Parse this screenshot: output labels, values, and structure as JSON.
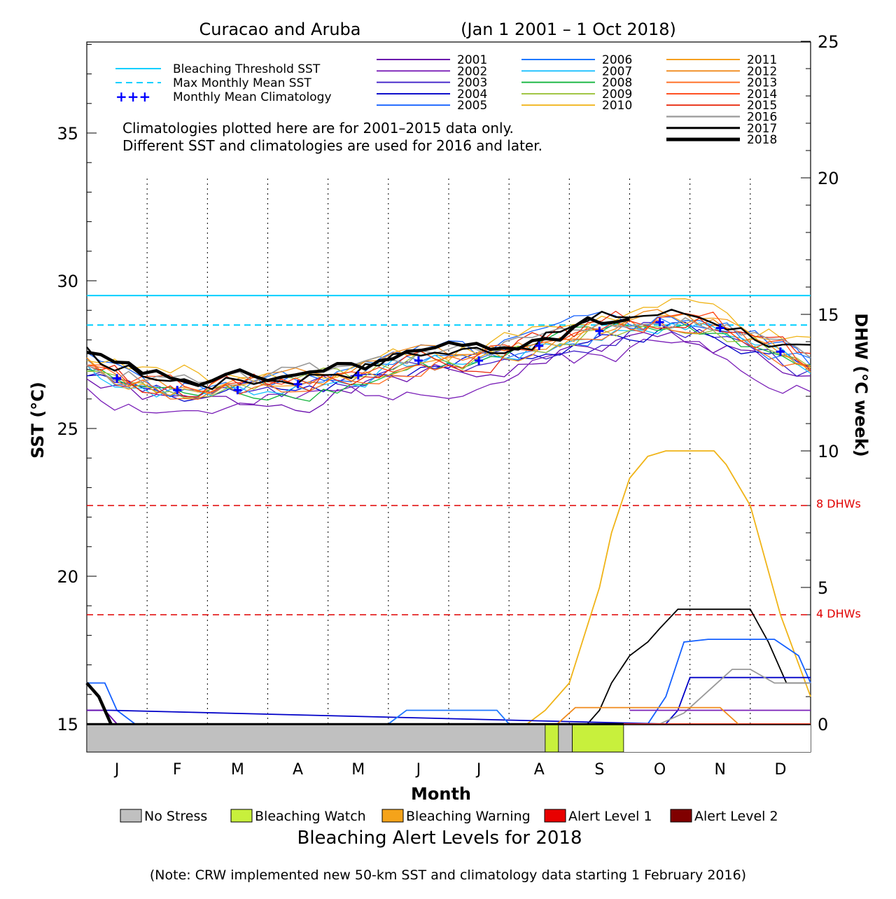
{
  "chart_data": {
    "type": "line",
    "title": "Curacao and Aruba",
    "date_range": "(Jan 1 2001 – 1 Oct 2018)",
    "xlabel": "Month",
    "ylabel_left": "SST (°C)",
    "ylabel_right": "DHW (°C week)",
    "months": [
      "J",
      "F",
      "M",
      "A",
      "M",
      "J",
      "J",
      "A",
      "S",
      "O",
      "N",
      "D"
    ],
    "x_range": [
      0,
      12
    ],
    "sst_range": [
      14,
      38.5
    ],
    "sst_ticks": [
      15,
      20,
      25,
      30,
      35
    ],
    "dhw_ticks": [
      0,
      5,
      10,
      15,
      20,
      25
    ],
    "dhw_scale_note": "right axis 0 at SST 15, 25 at SST 38.88",
    "note": "Climatologies plotted here are for 2001–2015 data only.",
    "note2": "Different SST and climatologies are used for 2016 and later.",
    "thresholds": {
      "bleaching_threshold_sst": 29.5,
      "max_monthly_mean_sst": 28.5,
      "dhw_8_label": "8 DHWs",
      "dhw_4_label": "4 DHWs",
      "dhw_8": 8,
      "dhw_4": 4
    },
    "legend_lines": [
      {
        "label": "Bleaching Threshold SST",
        "color": "#00cfff",
        "style": "solid"
      },
      {
        "label": "Max Monthly Mean SST",
        "color": "#00cfff",
        "style": "dashed"
      },
      {
        "label": "Monthly Mean Climatology",
        "color": "#0000ff",
        "style": "plus"
      }
    ],
    "climatology": {
      "x": [
        0.5,
        1.5,
        2.5,
        3.5,
        4.5,
        5.5,
        6.5,
        7.5,
        8.5,
        9.5,
        10.5,
        11.5
      ],
      "y": [
        26.7,
        26.3,
        26.3,
        26.5,
        26.8,
        27.3,
        27.3,
        27.8,
        28.3,
        28.6,
        28.4,
        27.6
      ]
    },
    "series": [
      {
        "name": "2001",
        "color": "#6a0dad",
        "base": -0.5,
        "amp": 0.3,
        "seed": 1,
        "wid": 1.3
      },
      {
        "name": "2002",
        "color": "#7a1fb8",
        "base": -0.7,
        "amp": 0.35,
        "seed": 2,
        "wid": 1.3
      },
      {
        "name": "2003",
        "color": "#3f1fc8",
        "base": -0.2,
        "amp": 0.3,
        "seed": 3,
        "wid": 1.3
      },
      {
        "name": "2004",
        "color": "#0000c8",
        "base": -0.1,
        "amp": 0.3,
        "seed": 4,
        "wid": 1.3
      },
      {
        "name": "2005",
        "color": "#1460ff",
        "base": 0.15,
        "amp": 0.35,
        "seed": 5,
        "wid": 1.3
      },
      {
        "name": "2006",
        "color": "#1e78ff",
        "base": 0.05,
        "amp": 0.3,
        "seed": 6,
        "wid": 1.3
      },
      {
        "name": "2007",
        "color": "#19c0ff",
        "base": -0.05,
        "amp": 0.3,
        "seed": 7,
        "wid": 1.3
      },
      {
        "name": "2008",
        "color": "#12b43c",
        "base": -0.15,
        "amp": 0.3,
        "seed": 8,
        "wid": 1.3
      },
      {
        "name": "2009",
        "color": "#9bc23a",
        "base": -0.05,
        "amp": 0.3,
        "seed": 9,
        "wid": 1.3
      },
      {
        "name": "2010",
        "color": "#f0b418",
        "base": 0.45,
        "amp": 0.35,
        "seed": 10,
        "wid": 1.3
      },
      {
        "name": "2011",
        "color": "#f5a020",
        "base": 0.0,
        "amp": 0.3,
        "seed": 11,
        "wid": 1.3
      },
      {
        "name": "2012",
        "color": "#f08a1c",
        "base": 0.1,
        "amp": 0.3,
        "seed": 12,
        "wid": 1.3
      },
      {
        "name": "2013",
        "color": "#ff6a1c",
        "base": -0.05,
        "amp": 0.3,
        "seed": 13,
        "wid": 1.3
      },
      {
        "name": "2014",
        "color": "#ff4614",
        "base": 0.05,
        "amp": 0.3,
        "seed": 14,
        "wid": 1.3
      },
      {
        "name": "2015",
        "color": "#e8280c",
        "base": 0.15,
        "amp": 0.35,
        "seed": 15,
        "wid": 1.3
      },
      {
        "name": "2016",
        "color": "#999999",
        "base": 0.25,
        "amp": 0.3,
        "seed": 16,
        "wid": 1.6
      },
      {
        "name": "2017",
        "color": "#000000",
        "base": 0.35,
        "amp": 0.3,
        "seed": 17,
        "wid": 2.4
      },
      {
        "name": "2018",
        "color": "#000000",
        "base": 0.3,
        "amp": 0.25,
        "seed": 18,
        "wid": 4.5,
        "end_x": 9.0
      }
    ],
    "dhw_series": [
      {
        "name": "2010",
        "color": "#f0b418",
        "x": [
          7.3,
          7.6,
          8.0,
          8.5,
          8.7,
          9.0,
          9.3,
          9.6,
          10.0,
          10.4,
          10.6,
          11.0,
          11.5,
          12.0
        ],
        "y": [
          0,
          0.5,
          1.5,
          5,
          7,
          9,
          9.8,
          10,
          10,
          10,
          9.5,
          8,
          4,
          1
        ]
      },
      {
        "name": "2017",
        "color": "#000000",
        "x": [
          8.0,
          8.3,
          8.5,
          8.7,
          9.0,
          9.3,
          9.5,
          9.8,
          10.2,
          10.6,
          11.0,
          11.3,
          11.6,
          12.0
        ],
        "y": [
          0,
          0,
          0.5,
          1.5,
          2.5,
          3,
          3.5,
          4.2,
          4.2,
          4.2,
          4.2,
          3,
          1.5,
          1.5
        ]
      },
      {
        "name": "2005",
        "color": "#1460ff",
        "x": [
          0,
          0.3,
          0.5,
          0.8,
          9.3,
          9.6,
          9.9,
          10.3,
          10.7,
          11.0,
          11.4,
          11.8,
          12.0
        ],
        "y": [
          1.5,
          1.5,
          0.5,
          0,
          0,
          1,
          3,
          3.1,
          3.1,
          3.1,
          3.1,
          2.5,
          1.5
        ]
      },
      {
        "name": "2004",
        "color": "#0000c8",
        "x": [
          0,
          0.4,
          9.6,
          9.8,
          10.0,
          10.4,
          10.8,
          11.2,
          11.6,
          12.0
        ],
        "y": [
          0.5,
          0.5,
          0,
          0.5,
          1.7,
          1.7,
          1.7,
          1.7,
          1.7,
          1.7
        ]
      },
      {
        "name": "2016",
        "color": "#999999",
        "x": [
          0,
          9.5,
          9.9,
          10.3,
          10.7,
          11.0,
          11.4,
          11.8,
          12.0
        ],
        "y": [
          0,
          0,
          0.4,
          1.2,
          2.0,
          2.0,
          1.5,
          1.5,
          1.5
        ]
      },
      {
        "name": "2002",
        "color": "#7a1fb8",
        "x": [
          9.0,
          12.0
        ],
        "y": [
          0.5,
          0.5
        ]
      },
      {
        "name": "2015",
        "color": "#e8280c",
        "x": [
          7.5,
          12.0
        ],
        "y": [
          0,
          0
        ]
      },
      {
        "name": "2001",
        "color": "#6a0dad",
        "x": [
          0,
          0.3,
          0.5
        ],
        "y": [
          0.5,
          0.5,
          0
        ]
      },
      {
        "name": "2013",
        "color": "#f08a1c",
        "x": [
          7.8,
          8.1,
          10.5,
          10.8
        ],
        "y": [
          0,
          0.6,
          0.6,
          0
        ]
      },
      {
        "name": "2007",
        "color": "#1e78ff",
        "x": [
          5.0,
          5.3,
          6.8,
          7.0
        ],
        "y": [
          0,
          0.5,
          0.5,
          0
        ]
      },
      {
        "name": "2018",
        "color": "#000000",
        "x": [
          0,
          0.2,
          0.4
        ],
        "y": [
          1.5,
          1,
          0
        ],
        "wid": 4.5
      }
    ],
    "alert_bar": {
      "title": "Bleaching Alert Levels for 2018",
      "segments": [
        {
          "start": 0,
          "end": 7.6,
          "level": "no_stress"
        },
        {
          "start": 7.6,
          "end": 7.82,
          "level": "watch"
        },
        {
          "start": 7.82,
          "end": 8.05,
          "level": "no_stress"
        },
        {
          "start": 8.05,
          "end": 8.9,
          "level": "watch"
        }
      ]
    },
    "alert_legend": [
      {
        "key": "no_stress",
        "label": "No Stress",
        "color": "#c0c0c0"
      },
      {
        "key": "watch",
        "label": "Bleaching Watch",
        "color": "#c8f03c"
      },
      {
        "key": "warning",
        "label": "Bleaching Warning",
        "color": "#f5a31a"
      },
      {
        "key": "alert1",
        "label": "Alert Level 1",
        "color": "#e80000"
      },
      {
        "key": "alert2",
        "label": "Alert Level 2",
        "color": "#800000"
      }
    ]
  },
  "footnote": "(Note: CRW implemented new 50-km SST and climatology data starting 1 February 2016)"
}
